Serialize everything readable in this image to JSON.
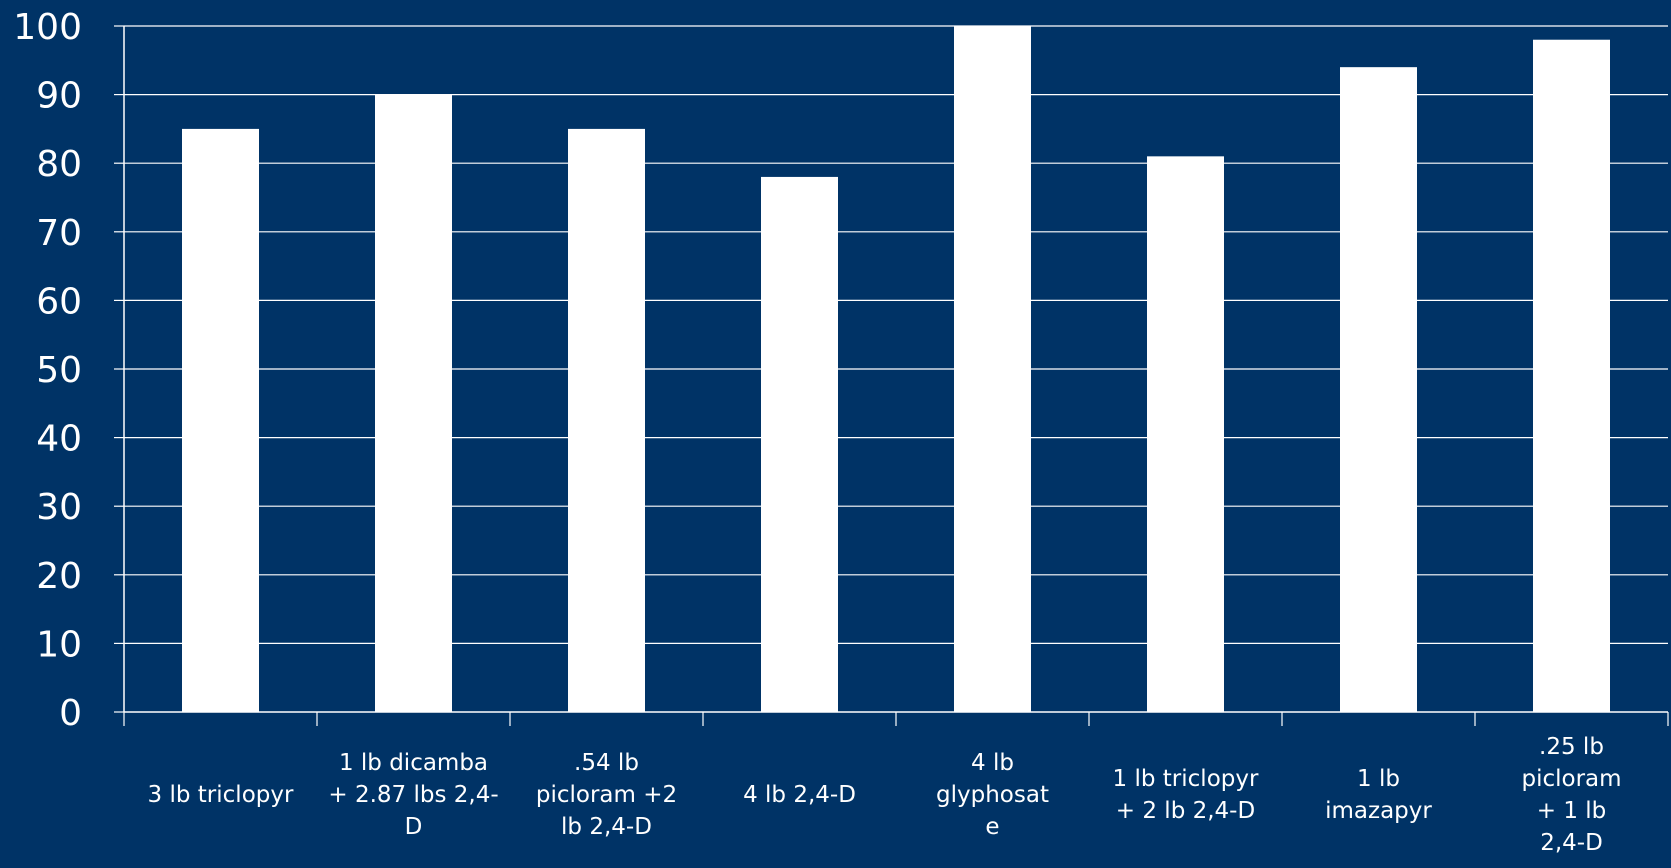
{
  "chart_data": {
    "type": "bar",
    "title": "",
    "xlabel": "",
    "ylabel": "",
    "ylim": [
      0,
      100
    ],
    "yticks": [
      0,
      10,
      20,
      30,
      40,
      50,
      60,
      70,
      80,
      90,
      100
    ],
    "grid": true,
    "categories": [
      [
        "3 lb triclopyr"
      ],
      [
        "1 lb dicamba",
        "+ 2.87 lbs 2,4-",
        "D"
      ],
      [
        ".54 lb",
        "picloram +2",
        "lb 2,4-D"
      ],
      [
        "4 lb 2,4-D"
      ],
      [
        "4 lb",
        "glyphosat",
        "e"
      ],
      [
        "1 lb triclopyr",
        "+ 2 lb 2,4-D"
      ],
      [
        "1 lb",
        "imazapyr"
      ],
      [
        ".25 lb",
        "picloram",
        "+ 1 lb",
        "2,4-D"
      ]
    ],
    "values": [
      85,
      90,
      85,
      78,
      100,
      81,
      94,
      98
    ],
    "colors": {
      "background": "#003366",
      "bar": "#ffffff",
      "grid": "#ffffff",
      "text": "#ffffff"
    }
  }
}
